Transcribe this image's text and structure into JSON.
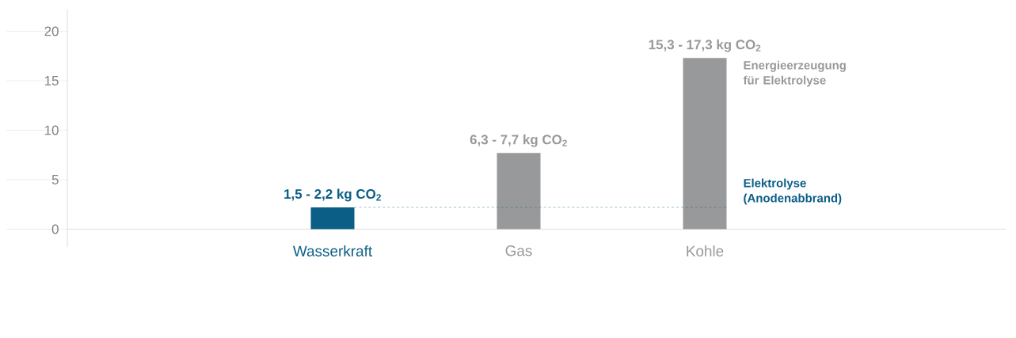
{
  "chart_data": {
    "type": "bar",
    "categories": [
      "Wasserkraft",
      "Gas",
      "Kohle"
    ],
    "values": [
      2.2,
      7.7,
      17.3
    ],
    "colors": [
      "#0b5e86",
      "#98999b",
      "#98999b"
    ],
    "ylim": [
      -1.8,
      22.2
    ],
    "yticks": [
      0,
      5,
      10,
      15,
      20
    ],
    "ref_lines": [
      {
        "axis": "y",
        "value": 2.2,
        "label": "Elektrolyse (Anodenabbrand)",
        "color": "#0b5e86",
        "line_style": "dashed"
      }
    ],
    "annotations": [
      "1,5 - 2,2 kg CO$_{2}$",
      "6,3 - 7,7 kg CO$_{2}$",
      "15,3 - 17,3 kg CO$_{2}$",
      "Energieerzeugung für Elektrolyse"
    ],
    "grid": "y"
  }
}
